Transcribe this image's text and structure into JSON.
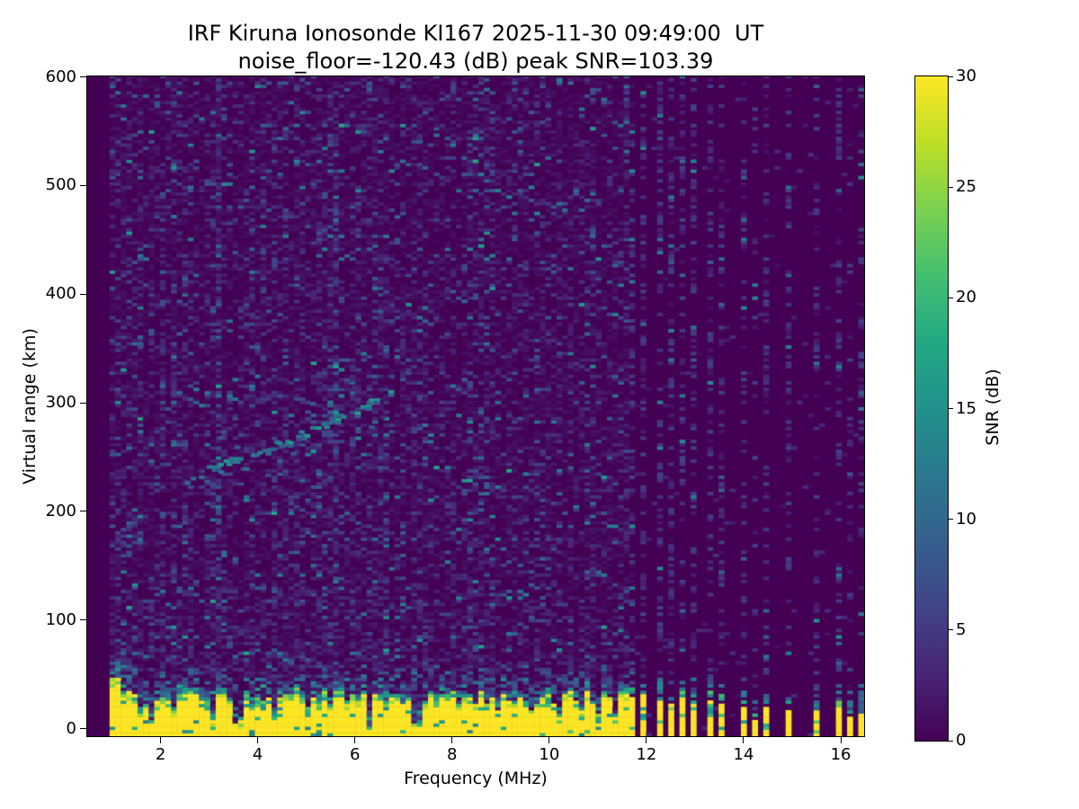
{
  "figure": {
    "title_line1": "IRF Kiruna Ionosonde KI167 2025-11-30 09:49:00  UT",
    "title_line2": "noise_floor=-120.43 (dB) peak SNR=103.39",
    "station": "KI167",
    "timestamp": "2025-11-30 09:49:00 UT",
    "noise_floor_db": -120.43,
    "peak_snr_db": 103.39
  },
  "chart_data": {
    "type": "heatmap",
    "title": "IRF Kiruna Ionosonde KI167 2025-11-30 09:49:00  UT",
    "subtitle": "noise_floor=-120.43 (dB) peak SNR=103.39",
    "xlabel": "Frequency (MHz)",
    "ylabel": "Virtual range (km)",
    "colorbar_label": "SNR (dB)",
    "xlim": [
      0.49,
      16.48
    ],
    "ylim": [
      -7,
      600.5
    ],
    "clim": [
      0,
      30
    ],
    "xticks": [
      2,
      4,
      6,
      8,
      10,
      12,
      14,
      16
    ],
    "yticks": [
      0,
      100,
      200,
      300,
      400,
      500,
      600
    ],
    "cticks": [
      0,
      5,
      10,
      15,
      20,
      25,
      30
    ],
    "grid": false,
    "colormap": "viridis",
    "colormap_stops": [
      [
        0.0,
        "#440154"
      ],
      [
        0.1,
        "#482475"
      ],
      [
        0.2,
        "#414487"
      ],
      [
        0.3,
        "#355f8d"
      ],
      [
        0.4,
        "#2a788e"
      ],
      [
        0.5,
        "#21918c"
      ],
      [
        0.6,
        "#22a884"
      ],
      [
        0.7,
        "#44bf70"
      ],
      [
        0.8,
        "#7ad151"
      ],
      [
        0.9,
        "#bddf26"
      ],
      [
        1.0,
        "#fde725"
      ]
    ],
    "background_snr_db": 0,
    "data_start_freq_mhz": 0.97,
    "continuous_band_end_mhz": 11.62,
    "ground_clutter": {
      "typical_top_km": 30,
      "max_snr_db": 30,
      "enhanced_below_mhz": 1.4,
      "enhanced_top_km": 44,
      "notches_freq_width_topkm": [
        [
          1.55,
          0.05,
          14
        ],
        [
          1.82,
          0.07,
          5
        ],
        [
          2.28,
          0.05,
          16
        ],
        [
          3.08,
          0.08,
          5
        ],
        [
          3.62,
          0.09,
          4
        ],
        [
          4.33,
          0.06,
          13
        ],
        [
          5.06,
          0.05,
          17
        ],
        [
          6.3,
          0.08,
          3
        ],
        [
          6.57,
          0.04,
          15
        ],
        [
          7.28,
          0.07,
          4
        ],
        [
          8.2,
          0.04,
          17
        ],
        [
          8.95,
          0.06,
          12
        ],
        [
          9.62,
          0.04,
          16
        ],
        [
          10.2,
          0.05,
          12
        ],
        [
          10.67,
          0.04,
          15
        ],
        [
          11.05,
          0.05,
          11
        ],
        [
          11.38,
          0.05,
          9
        ]
      ]
    },
    "interference_stripes_freq_strength": [
      [
        11.69,
        1.0
      ],
      [
        11.97,
        1.0
      ],
      [
        12.24,
        0.95
      ],
      [
        12.49,
        0.95
      ],
      [
        12.76,
        0.9
      ],
      [
        13.01,
        0.85
      ],
      [
        13.28,
        0.8
      ],
      [
        13.53,
        0.8
      ],
      [
        13.99,
        0.75
      ],
      [
        14.24,
        0.3
      ],
      [
        14.48,
        0.7
      ],
      [
        14.97,
        0.7
      ],
      [
        15.46,
        0.7
      ],
      [
        15.95,
        0.72
      ],
      [
        16.2,
        0.35
      ],
      [
        16.42,
        0.45
      ]
    ],
    "echo_trace": {
      "description": "ionospheric echo, dashed teal arc",
      "snr_db_range": [
        9,
        17
      ],
      "points_freq_km": [
        [
          3.0,
          238
        ],
        [
          3.5,
          246
        ],
        [
          4.0,
          255
        ],
        [
          4.5,
          264
        ],
        [
          5.0,
          274
        ],
        [
          5.5,
          284
        ],
        [
          6.0,
          294
        ],
        [
          6.5,
          304
        ]
      ],
      "secondary_points_freq_km": [
        [
          2.55,
          225
        ],
        [
          2.9,
          229
        ],
        [
          3.3,
          234
        ],
        [
          3.7,
          238
        ]
      ]
    },
    "noise_texture": {
      "seed": 20251130,
      "cell_freq_step_mhz": 0.115,
      "cell_range_step_km": 3,
      "speckle_probability": 0.3,
      "speckle_snr_db_typical": [
        1,
        8
      ],
      "speckle_snr_db_max": 18,
      "striped_region_gap_probability": 0.02
    }
  }
}
